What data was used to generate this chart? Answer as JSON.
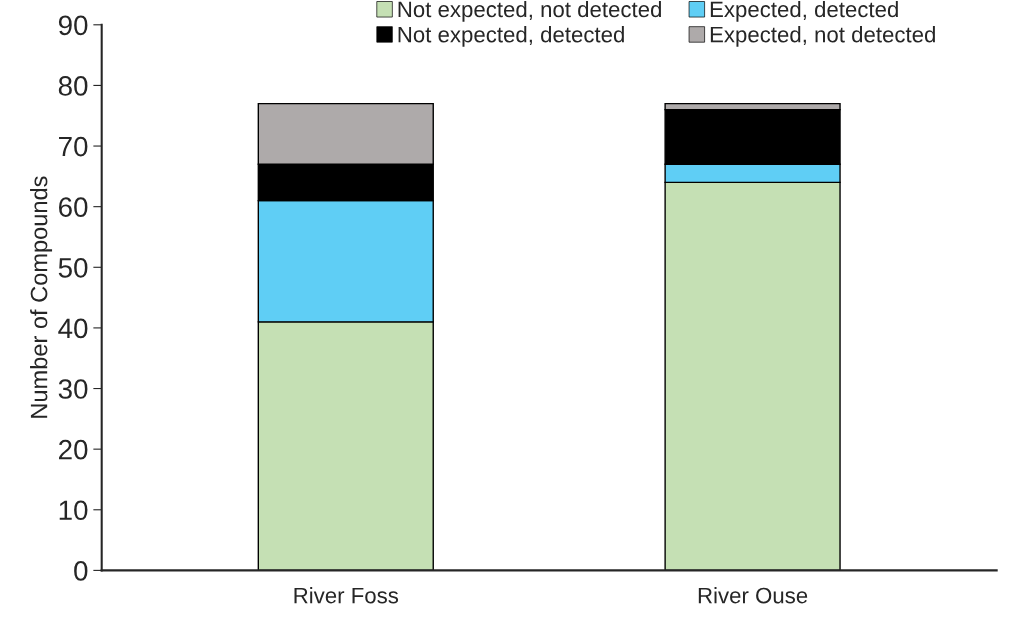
{
  "chart_data": {
    "type": "bar",
    "stacked": true,
    "ylabel": "Number of Compounds",
    "categories": [
      "River Foss",
      "River Ouse"
    ],
    "series": [
      {
        "name": "Not expected, not detected",
        "color": "#c5e0b4",
        "values": [
          41,
          64
        ]
      },
      {
        "name": "Expected, detected",
        "color": "#5fcef5",
        "values": [
          20,
          3
        ]
      },
      {
        "name": "Not expected, detected",
        "color": "#000000",
        "values": [
          6,
          9
        ]
      },
      {
        "name": "Expected, not detected",
        "color": "#aeaaaa",
        "values": [
          10,
          1
        ]
      }
    ],
    "ylim": [
      0,
      90
    ],
    "yticks": [
      0,
      10,
      20,
      30,
      40,
      50,
      60,
      70,
      80,
      90
    ],
    "grid": false,
    "legend": "top"
  }
}
